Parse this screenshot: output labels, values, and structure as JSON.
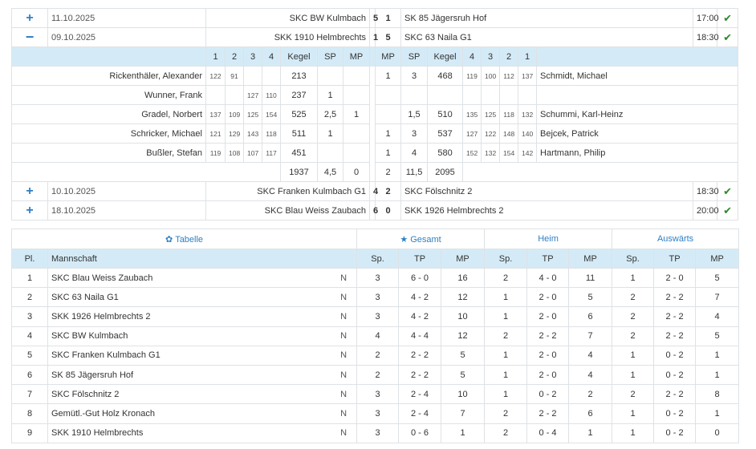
{
  "games": [
    {
      "expanded": false,
      "date": "11.10.2025",
      "home": "SKC BW Kulmbach",
      "home_score": "5",
      "away_score": "1",
      "away": "SK 85 Jägersruh Hof",
      "time": "17:00"
    },
    {
      "expanded": true,
      "date": "09.10.2025",
      "home": "SKK 1910 Helmbrechts",
      "home_score": "1",
      "away_score": "5",
      "away": "SKC 63 Naila G1",
      "time": "18:30"
    },
    {
      "expanded": false,
      "date": "10.10.2025",
      "home": "SKC Franken Kulmbach G1",
      "home_score": "4",
      "away_score": "2",
      "away": "SKC Fölschnitz 2",
      "time": "18:30"
    },
    {
      "expanded": false,
      "date": "18.10.2025",
      "home": "SKC Blau Weiss Zaubach",
      "home_score": "6",
      "away_score": "0",
      "away": "SKK 1926 Helmbrechts 2",
      "time": "20:00"
    }
  ],
  "detail": {
    "headers": {
      "r1": "1",
      "r2": "2",
      "r3": "3",
      "r4": "4",
      "kegel": "Kegel",
      "sp": "SP",
      "mp": "MP"
    },
    "rows": [
      {
        "home_player": "Rickenthäler, Alexander",
        "h1": "122",
        "h2": "91",
        "h3": "",
        "h4": "",
        "h_kegel": "213",
        "h_sp": "",
        "h_mp": "",
        "a_mp": "1",
        "a_sp": "3",
        "a_kegel": "468",
        "a4": "119",
        "a3": "100",
        "a2": "112",
        "a1": "137",
        "away_player": "Schmidt, Michael"
      },
      {
        "home_player": "Wunner, Frank",
        "h1": "",
        "h2": "",
        "h3": "127",
        "h4": "110",
        "h_kegel": "237",
        "h_sp": "1",
        "h_mp": "",
        "a_mp": "",
        "a_sp": "",
        "a_kegel": "",
        "a4": "",
        "a3": "",
        "a2": "",
        "a1": "",
        "away_player": ""
      },
      {
        "home_player": "Gradel, Norbert",
        "h1": "137",
        "h2": "109",
        "h3": "125",
        "h4": "154",
        "h_kegel": "525",
        "h_sp": "2,5",
        "h_mp": "1",
        "a_mp": "",
        "a_sp": "1,5",
        "a_kegel": "510",
        "a4": "135",
        "a3": "125",
        "a2": "118",
        "a1": "132",
        "away_player": "Schummi, Karl-Heinz"
      },
      {
        "home_player": "Schricker, Michael",
        "h1": "121",
        "h2": "129",
        "h3": "143",
        "h4": "118",
        "h_kegel": "511",
        "h_sp": "1",
        "h_mp": "",
        "a_mp": "1",
        "a_sp": "3",
        "a_kegel": "537",
        "a4": "127",
        "a3": "122",
        "a2": "148",
        "a1": "140",
        "away_player": "Bejcek, Patrick"
      },
      {
        "home_player": "Bußler, Stefan",
        "h1": "119",
        "h2": "108",
        "h3": "107",
        "h4": "117",
        "h_kegel": "451",
        "h_sp": "",
        "h_mp": "",
        "a_mp": "1",
        "a_sp": "4",
        "a_kegel": "580",
        "a4": "152",
        "a3": "132",
        "a2": "154",
        "a1": "142",
        "away_player": "Hartmann, Philip"
      }
    ],
    "totals": {
      "h_kegel": "1937",
      "h_sp": "4,5",
      "h_mp": "0",
      "a_mp": "2",
      "a_sp": "11,5",
      "a_kegel": "2095"
    }
  },
  "standings": {
    "sections": {
      "table": "Tabelle",
      "total": "Gesamt",
      "home": "Heim",
      "away": "Auswärts"
    },
    "columns": {
      "pl": "Pl.",
      "team": "Mannschaft",
      "sp": "Sp.",
      "tp": "TP",
      "mp": "MP"
    },
    "rows": [
      {
        "pl": "1",
        "team": "SKC Blau Weiss Zaubach",
        "flag": "N",
        "g_sp": "3",
        "g_tp": "6 - 0",
        "g_mp": "16",
        "h_sp": "2",
        "h_tp": "4 - 0",
        "h_mp": "11",
        "a_sp": "1",
        "a_tp": "2 - 0",
        "a_mp": "5"
      },
      {
        "pl": "2",
        "team": "SKC 63 Naila G1",
        "flag": "N",
        "g_sp": "3",
        "g_tp": "4 - 2",
        "g_mp": "12",
        "h_sp": "1",
        "h_tp": "2 - 0",
        "h_mp": "5",
        "a_sp": "2",
        "a_tp": "2 - 2",
        "a_mp": "7"
      },
      {
        "pl": "3",
        "team": "SKK 1926 Helmbrechts 2",
        "flag": "N",
        "g_sp": "3",
        "g_tp": "4 - 2",
        "g_mp": "10",
        "h_sp": "1",
        "h_tp": "2 - 0",
        "h_mp": "6",
        "a_sp": "2",
        "a_tp": "2 - 2",
        "a_mp": "4"
      },
      {
        "pl": "4",
        "team": "SKC BW Kulmbach",
        "flag": "N",
        "g_sp": "4",
        "g_tp": "4 - 4",
        "g_mp": "12",
        "h_sp": "2",
        "h_tp": "2 - 2",
        "h_mp": "7",
        "a_sp": "2",
        "a_tp": "2 - 2",
        "a_mp": "5"
      },
      {
        "pl": "5",
        "team": "SKC Franken Kulmbach G1",
        "flag": "N",
        "g_sp": "2",
        "g_tp": "2 - 2",
        "g_mp": "5",
        "h_sp": "1",
        "h_tp": "2 - 0",
        "h_mp": "4",
        "a_sp": "1",
        "a_tp": "0 - 2",
        "a_mp": "1"
      },
      {
        "pl": "6",
        "team": "SK 85 Jägersruh Hof",
        "flag": "N",
        "g_sp": "2",
        "g_tp": "2 - 2",
        "g_mp": "5",
        "h_sp": "1",
        "h_tp": "2 - 0",
        "h_mp": "4",
        "a_sp": "1",
        "a_tp": "0 - 2",
        "a_mp": "1"
      },
      {
        "pl": "7",
        "team": "SKC Fölschnitz 2",
        "flag": "N",
        "g_sp": "3",
        "g_tp": "2 - 4",
        "g_mp": "10",
        "h_sp": "1",
        "h_tp": "0 - 2",
        "h_mp": "2",
        "a_sp": "2",
        "a_tp": "2 - 2",
        "a_mp": "8"
      },
      {
        "pl": "8",
        "team": "Gemütl.-Gut Holz Kronach",
        "flag": "N",
        "g_sp": "3",
        "g_tp": "2 - 4",
        "g_mp": "7",
        "h_sp": "2",
        "h_tp": "2 - 2",
        "h_mp": "6",
        "a_sp": "1",
        "a_tp": "0 - 2",
        "a_mp": "1"
      },
      {
        "pl": "9",
        "team": "SKK 1910 Helmbrechts",
        "flag": "N",
        "g_sp": "3",
        "g_tp": "0 - 6",
        "g_mp": "1",
        "h_sp": "2",
        "h_tp": "0 - 4",
        "h_mp": "1",
        "a_sp": "1",
        "a_tp": "0 - 2",
        "a_mp": "0"
      }
    ]
  },
  "icons": {
    "expand": "plus-icon",
    "collapse": "minus-icon",
    "confirmed": "check-icon",
    "table": "gear-icon",
    "total": "star-icon"
  },
  "colors": {
    "accent": "#2f7fc4",
    "header_bg": "#d4ebf7",
    "check": "#2a8a2a",
    "border": "#dee2e6"
  }
}
